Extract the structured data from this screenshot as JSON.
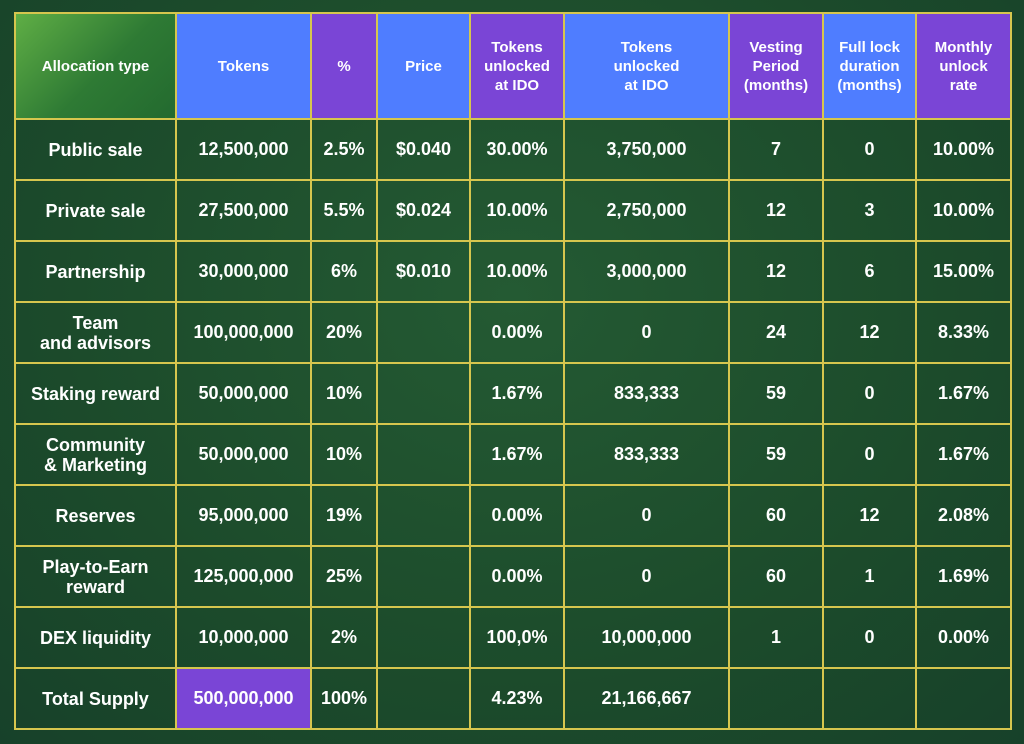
{
  "headers": [
    {
      "lines": [
        "Allocation type"
      ]
    },
    {
      "lines": [
        "Tokens"
      ]
    },
    {
      "lines": [
        "%"
      ]
    },
    {
      "lines": [
        "Price"
      ]
    },
    {
      "lines": [
        "Tokens",
        "unlocked",
        "at IDO"
      ]
    },
    {
      "lines": [
        "Tokens",
        "unlocked",
        "at IDO"
      ]
    },
    {
      "lines": [
        "Vesting",
        "Period",
        "(months)"
      ]
    },
    {
      "lines": [
        "Full lock",
        "duration",
        "(months)"
      ]
    },
    {
      "lines": [
        "Monthly",
        "unlock",
        "rate"
      ]
    }
  ],
  "colors": {
    "header_green": "#3f8f3a",
    "header_blue": "#4f7dff",
    "header_purple": "#7a45d6",
    "highlight_purple": "#7a45d6",
    "grid_border": "#d6c64e",
    "background": "#1d4a2c"
  },
  "rows": [
    {
      "type": [
        "Public sale"
      ],
      "tokens": "12,500,000",
      "percent": "2.5%",
      "price": "$0.040",
      "unlocked_pct": "30.00%",
      "unlocked_tokens": "3,750,000",
      "vesting": "7",
      "lock": "0",
      "monthly": "10.00%"
    },
    {
      "type": [
        "Private sale"
      ],
      "tokens": "27,500,000",
      "percent": "5.5%",
      "price": "$0.024",
      "unlocked_pct": "10.00%",
      "unlocked_tokens": "2,750,000",
      "vesting": "12",
      "lock": "3",
      "monthly": "10.00%"
    },
    {
      "type": [
        "Partnership"
      ],
      "tokens": "30,000,000",
      "percent": "6%",
      "price": "$0.010",
      "unlocked_pct": "10.00%",
      "unlocked_tokens": "3,000,000",
      "vesting": "12",
      "lock": "6",
      "monthly": "15.00%"
    },
    {
      "type": [
        "Team",
        "and advisors"
      ],
      "tokens": "100,000,000",
      "percent": "20%",
      "price": "",
      "unlocked_pct": "0.00%",
      "unlocked_tokens": "0",
      "vesting": "24",
      "lock": "12",
      "monthly": "8.33%"
    },
    {
      "type": [
        "Staking reward"
      ],
      "tokens": "50,000,000",
      "percent": "10%",
      "price": "",
      "unlocked_pct": "1.67%",
      "unlocked_tokens": "833,333",
      "vesting": "59",
      "lock": "0",
      "monthly": "1.67%"
    },
    {
      "type": [
        "Community",
        "& Marketing"
      ],
      "tokens": "50,000,000",
      "percent": "10%",
      "price": "",
      "unlocked_pct": "1.67%",
      "unlocked_tokens": "833,333",
      "vesting": "59",
      "lock": "0",
      "monthly": "1.67%"
    },
    {
      "type": [
        "Reserves"
      ],
      "tokens": "95,000,000",
      "percent": "19%",
      "price": "",
      "unlocked_pct": "0.00%",
      "unlocked_tokens": "0",
      "vesting": "60",
      "lock": "12",
      "monthly": "2.08%"
    },
    {
      "type": [
        "Play-to-Earn",
        "reward"
      ],
      "tokens": "125,000,000",
      "percent": "25%",
      "price": "",
      "unlocked_pct": "0.00%",
      "unlocked_tokens": "0",
      "vesting": "60",
      "lock": "1",
      "monthly": "1.69%"
    },
    {
      "type": [
        "DEX liquidity"
      ],
      "tokens": "10,000,000",
      "percent": "2%",
      "price": "",
      "unlocked_pct": "100,0%",
      "unlocked_tokens": "10,000,000",
      "vesting": "1",
      "lock": "0",
      "monthly": "0.00%"
    },
    {
      "type": [
        "Total Supply"
      ],
      "tokens": "500,000,000",
      "percent": "100%",
      "price": "",
      "unlocked_pct": "4.23%",
      "unlocked_tokens": "21,166,667",
      "vesting": "",
      "lock": "",
      "monthly": ""
    }
  ]
}
